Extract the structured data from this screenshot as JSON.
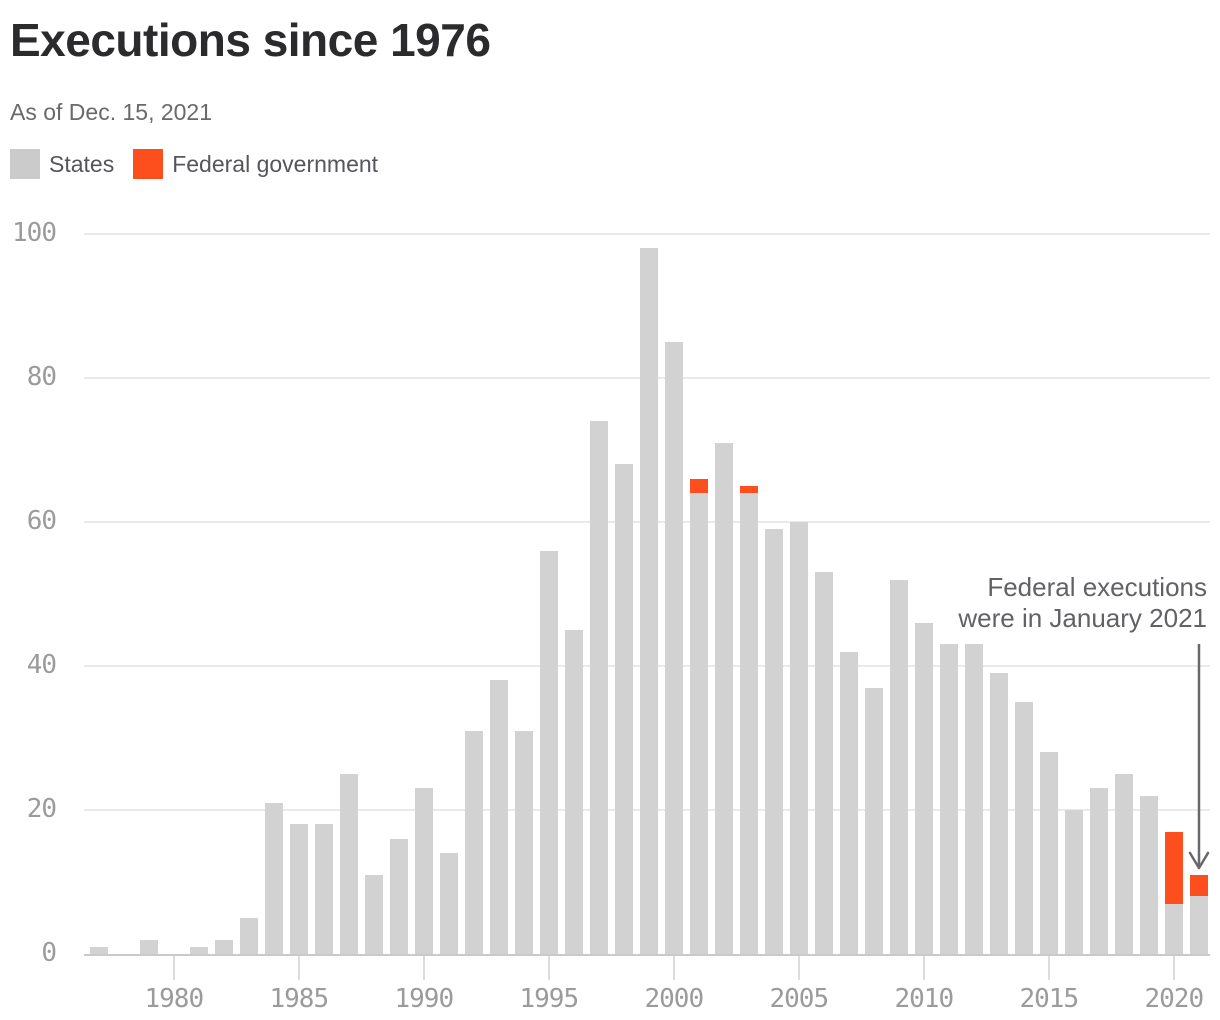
{
  "header": {
    "title": "Executions since 1976",
    "subtitle": "As of Dec. 15, 2021"
  },
  "legend": {
    "items": [
      {
        "label": "States",
        "color": "#cbcbcb"
      },
      {
        "label": "Federal government",
        "color": "#fd4e1e"
      }
    ]
  },
  "annotation": {
    "line1": "Federal executions",
    "line2": "were in January 2021"
  },
  "colors": {
    "states_bar": "#d2d2d2",
    "federal_bar": "#fd4e1e",
    "grid": "#eaeaea",
    "axis_line": "#c9c9c9",
    "tick": "#dcdcdc",
    "axis_label": "#9b9b9b",
    "title": "#2b2b2e",
    "subtitle": "#69696d",
    "legend_text": "#56565a",
    "annotation_text": "#626266",
    "arrow": "#68686b"
  },
  "chart_data": {
    "type": "bar",
    "stacked": true,
    "title": "Executions since 1976",
    "xlabel": "",
    "ylabel": "",
    "ylim": [
      0,
      100
    ],
    "grid": "horizontal",
    "legend_position": "top-left",
    "y_ticks": [
      0,
      20,
      40,
      60,
      80,
      100
    ],
    "x_tick_years": [
      1980,
      1985,
      1990,
      1995,
      2000,
      2005,
      2010,
      2015,
      2020
    ],
    "categories": [
      1977,
      1978,
      1979,
      1980,
      1981,
      1982,
      1983,
      1984,
      1985,
      1986,
      1987,
      1988,
      1989,
      1990,
      1991,
      1992,
      1993,
      1994,
      1995,
      1996,
      1997,
      1998,
      1999,
      2000,
      2001,
      2002,
      2003,
      2004,
      2005,
      2006,
      2007,
      2008,
      2009,
      2010,
      2011,
      2012,
      2013,
      2014,
      2015,
      2016,
      2017,
      2018,
      2019,
      2020,
      2021
    ],
    "series": [
      {
        "name": "States",
        "values": [
          1,
          0,
          2,
          0,
          1,
          2,
          5,
          21,
          18,
          18,
          25,
          11,
          16,
          23,
          14,
          31,
          38,
          31,
          56,
          45,
          74,
          68,
          98,
          85,
          64,
          71,
          64,
          59,
          60,
          53,
          42,
          37,
          52,
          46,
          43,
          43,
          39,
          35,
          28,
          20,
          23,
          25,
          22,
          7,
          8
        ]
      },
      {
        "name": "Federal government",
        "values": [
          0,
          0,
          0,
          0,
          0,
          0,
          0,
          0,
          0,
          0,
          0,
          0,
          0,
          0,
          0,
          0,
          0,
          0,
          0,
          0,
          0,
          0,
          0,
          0,
          2,
          0,
          1,
          0,
          0,
          0,
          0,
          0,
          0,
          0,
          0,
          0,
          0,
          0,
          0,
          0,
          0,
          0,
          0,
          10,
          3
        ]
      }
    ]
  }
}
